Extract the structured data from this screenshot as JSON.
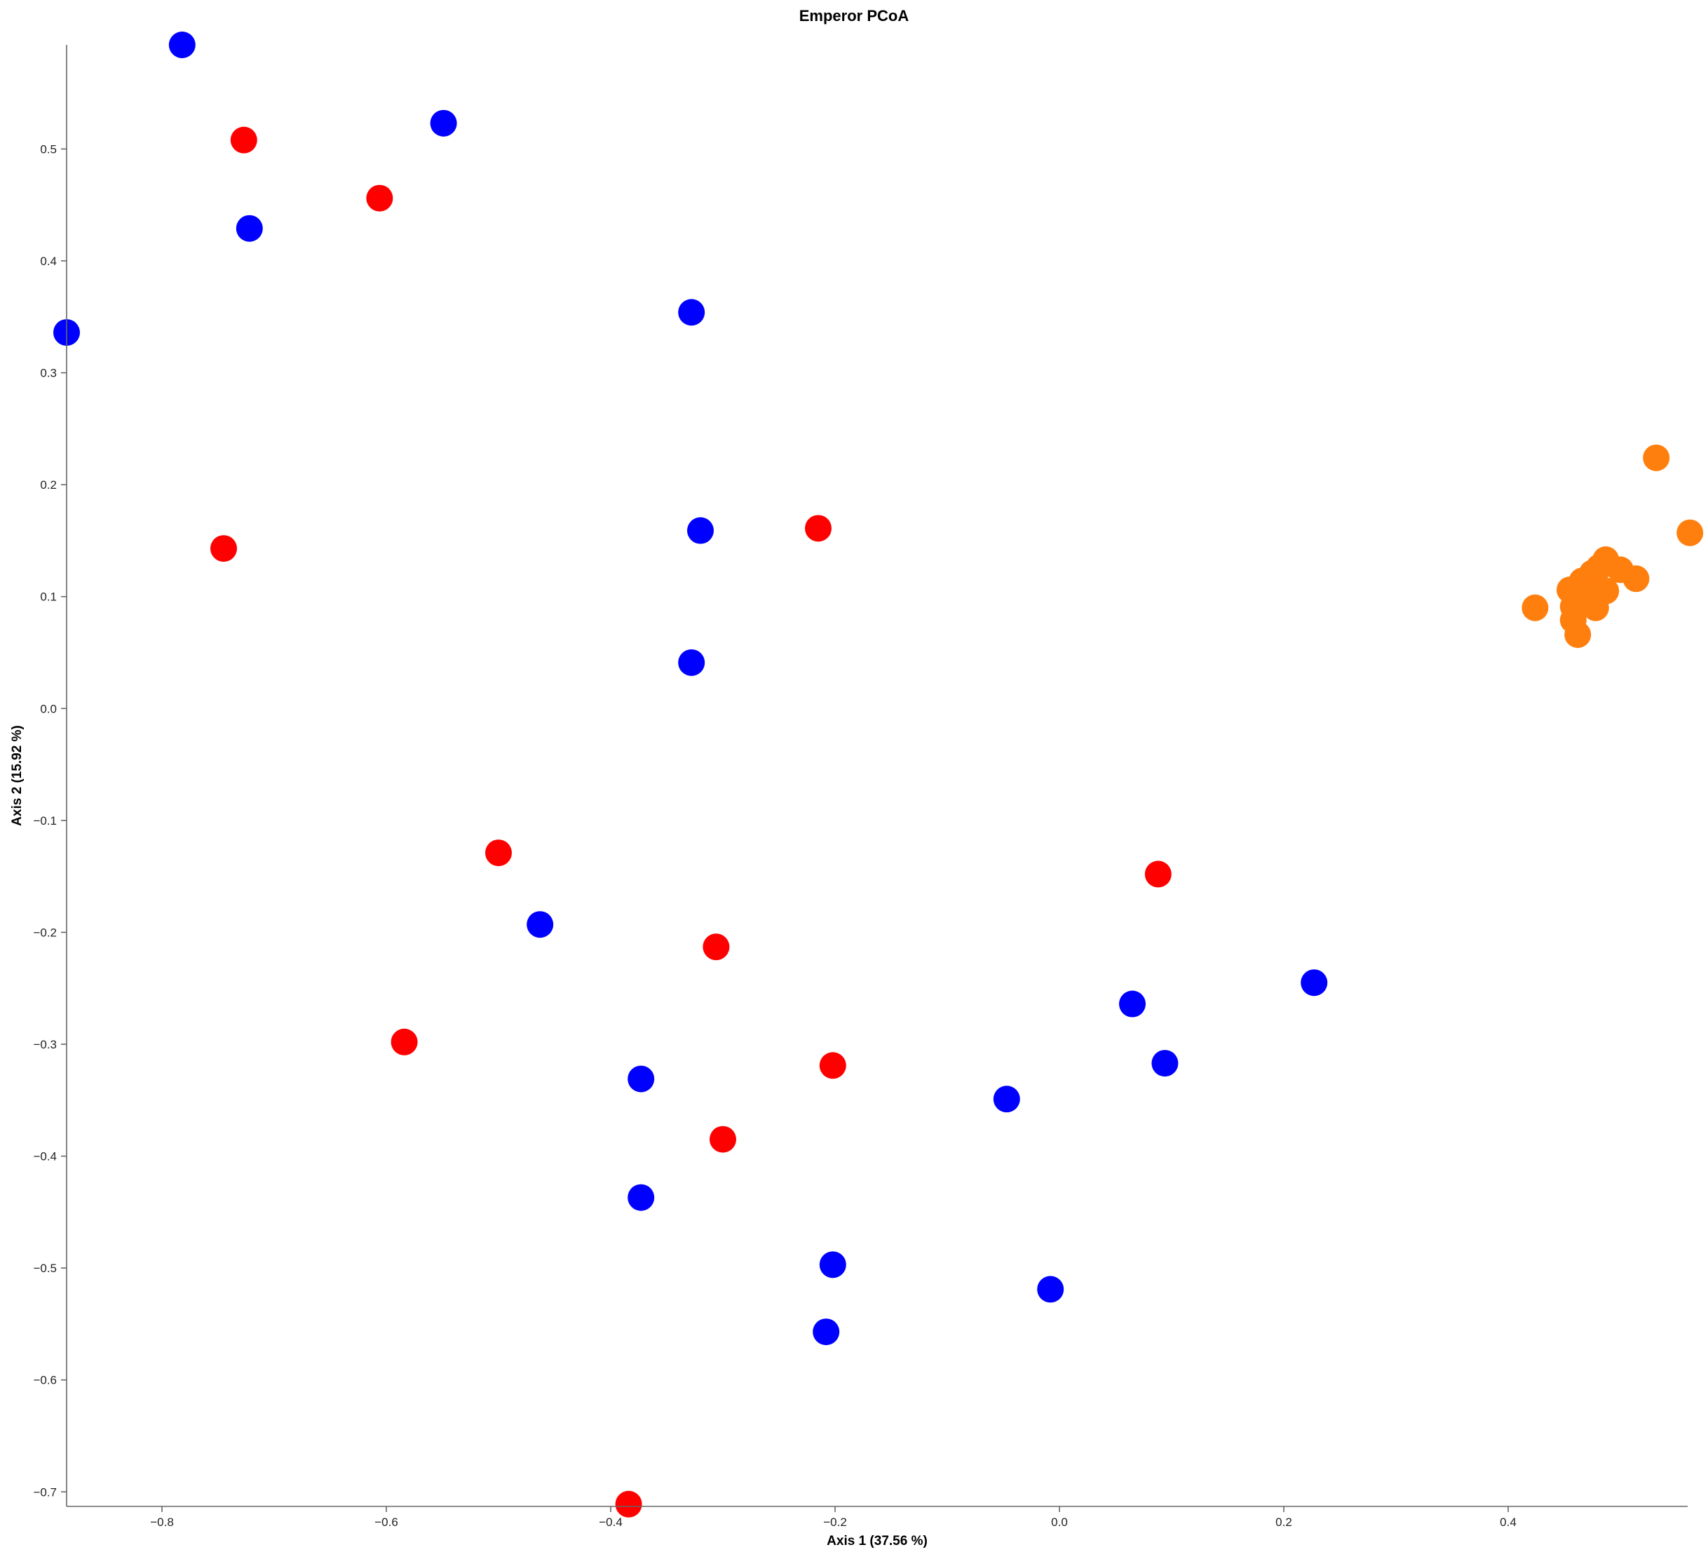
{
  "chart_data": {
    "type": "scatter",
    "title": "Emperor PCoA",
    "xlabel": "Axis 1 (37.56 %)",
    "ylabel": "Axis 2 (15.92 %)",
    "xlim": [
      -0.885,
      0.56
    ],
    "ylim": [
      -0.713,
      0.593
    ],
    "xticks": [
      -0.8,
      -0.6,
      -0.4,
      -0.2,
      0.0,
      0.2,
      0.4
    ],
    "xtick_labels": [
      "−0.8",
      "−0.6",
      "−0.4",
      "−0.2",
      "0.0",
      "0.2",
      "0.4"
    ],
    "yticks": [
      -0.7,
      -0.6,
      -0.5,
      -0.4,
      -0.3,
      -0.2,
      -0.1,
      0.0,
      0.1,
      0.2,
      0.3,
      0.4,
      0.5
    ],
    "ytick_labels": [
      "−0.7",
      "−0.6",
      "−0.5",
      "−0.4",
      "−0.3",
      "−0.2",
      "−0.1",
      "0.0",
      "0.1",
      "0.2",
      "0.3",
      "0.4",
      "0.5"
    ],
    "grid": false,
    "legend": "none",
    "series": [
      {
        "color": "#0000ff",
        "points": [
          [
            -0.782,
            0.593
          ],
          [
            -0.549,
            0.523
          ],
          [
            -0.722,
            0.429
          ],
          [
            -0.885,
            0.336
          ],
          [
            -0.328,
            0.354
          ],
          [
            -0.32,
            0.159
          ],
          [
            -0.328,
            0.041
          ],
          [
            -0.463,
            -0.193
          ],
          [
            -0.373,
            -0.331
          ],
          [
            -0.373,
            -0.437
          ],
          [
            -0.202,
            -0.497
          ],
          [
            -0.208,
            -0.557
          ],
          [
            -0.047,
            -0.349
          ],
          [
            -0.008,
            -0.519
          ],
          [
            0.065,
            -0.264
          ],
          [
            0.094,
            -0.317
          ],
          [
            0.227,
            -0.245
          ]
        ]
      },
      {
        "color": "#ff0000",
        "points": [
          [
            -0.727,
            0.508
          ],
          [
            -0.606,
            0.456
          ],
          [
            -0.745,
            0.143
          ],
          [
            -0.215,
            0.161
          ],
          [
            -0.5,
            -0.129
          ],
          [
            -0.306,
            -0.213
          ],
          [
            -0.584,
            -0.298
          ],
          [
            -0.202,
            -0.319
          ],
          [
            -0.3,
            -0.385
          ],
          [
            -0.384,
            -0.711
          ],
          [
            0.088,
            -0.148
          ]
        ]
      },
      {
        "color": "#ff7f0e",
        "points": [
          [
            0.532,
            0.224
          ],
          [
            0.562,
            0.157
          ],
          [
            0.487,
            0.133
          ],
          [
            0.5,
            0.124
          ],
          [
            0.514,
            0.116
          ],
          [
            0.475,
            0.121
          ],
          [
            0.466,
            0.114
          ],
          [
            0.481,
            0.126
          ],
          [
            0.455,
            0.106
          ],
          [
            0.469,
            0.103
          ],
          [
            0.487,
            0.105
          ],
          [
            0.458,
            0.091
          ],
          [
            0.478,
            0.09
          ],
          [
            0.424,
            0.09
          ],
          [
            0.458,
            0.079
          ],
          [
            0.462,
            0.066
          ]
        ]
      }
    ]
  }
}
